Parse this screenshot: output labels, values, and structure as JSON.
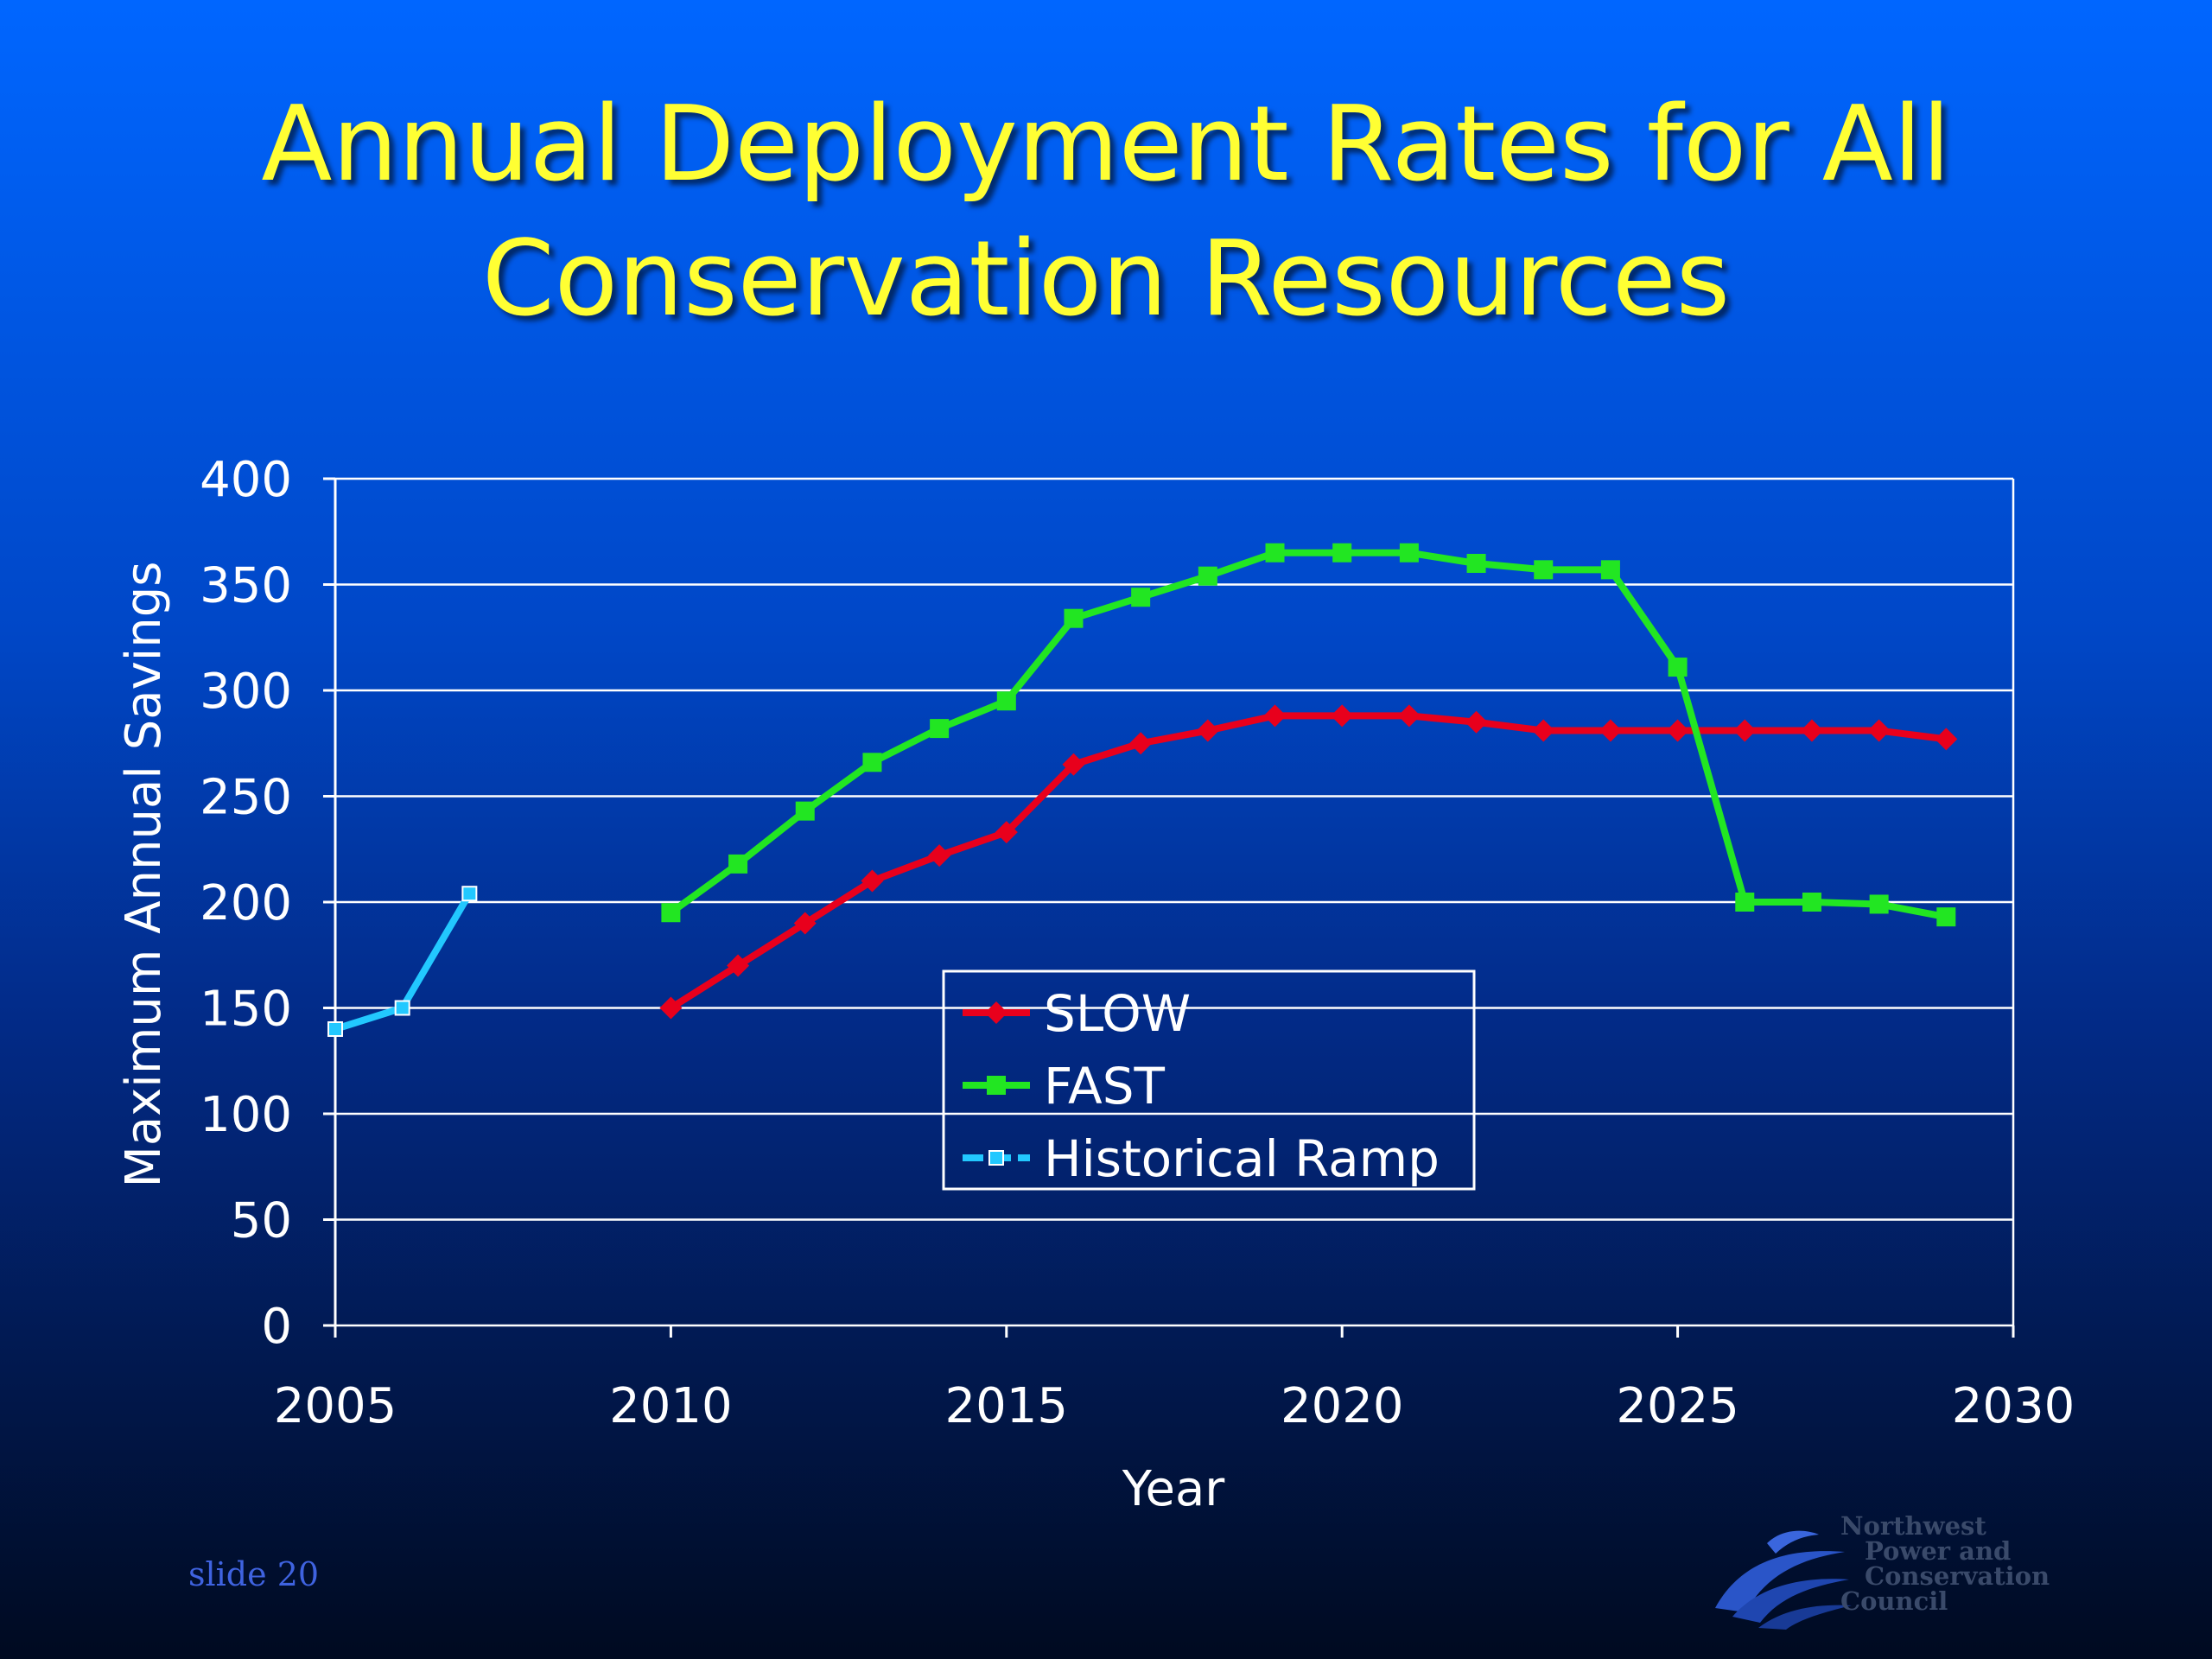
{
  "slide": {
    "title_line1": "Annual Deployment Rates for All",
    "title_line2": "Conservation Resources",
    "slide_number": "slide 20",
    "logo_lines": [
      "Northwest",
      "Power and",
      "Conservation",
      "Council"
    ],
    "logo_icon": "waves-bird-icon"
  },
  "chart_data": {
    "type": "line",
    "title": "",
    "xlabel": "Year",
    "ylabel": "Maximum Annual Savings",
    "xlim": [
      2005,
      2030
    ],
    "ylim": [
      0,
      400
    ],
    "x_ticks": [
      2005,
      2010,
      2015,
      2020,
      2025,
      2030
    ],
    "y_ticks": [
      0,
      50,
      100,
      150,
      200,
      250,
      300,
      350,
      400
    ],
    "grid": "horizontal",
    "legend_placement": "center",
    "series": [
      {
        "name": "SLOW",
        "color": "#e8001c",
        "marker": "diamond",
        "points": [
          [
            2010,
            150
          ],
          [
            2011,
            170
          ],
          [
            2012,
            190
          ],
          [
            2013,
            210
          ],
          [
            2014,
            222
          ],
          [
            2015,
            233
          ],
          [
            2016,
            265
          ],
          [
            2017,
            275
          ],
          [
            2018,
            281
          ],
          [
            2019,
            288
          ],
          [
            2020,
            288
          ],
          [
            2021,
            288
          ],
          [
            2022,
            285
          ],
          [
            2023,
            281
          ],
          [
            2024,
            281
          ],
          [
            2025,
            281
          ],
          [
            2026,
            281
          ],
          [
            2027,
            281
          ],
          [
            2028,
            281
          ],
          [
            2029,
            277
          ]
        ]
      },
      {
        "name": "FAST",
        "color": "#22e622",
        "marker": "square",
        "points": [
          [
            2010,
            195
          ],
          [
            2011,
            218
          ],
          [
            2012,
            243
          ],
          [
            2013,
            266
          ],
          [
            2014,
            282
          ],
          [
            2015,
            295
          ],
          [
            2016,
            334
          ],
          [
            2017,
            344
          ],
          [
            2018,
            354
          ],
          [
            2019,
            365
          ],
          [
            2020,
            365
          ],
          [
            2021,
            365
          ],
          [
            2022,
            360
          ],
          [
            2023,
            357
          ],
          [
            2024,
            357
          ],
          [
            2025,
            311
          ],
          [
            2026,
            200
          ],
          [
            2027,
            200
          ],
          [
            2028,
            199
          ],
          [
            2029,
            193
          ]
        ]
      },
      {
        "name": "Historical Ramp",
        "color": "#22c8ff",
        "marker": "square",
        "points": [
          [
            2005,
            140
          ],
          [
            2006,
            150
          ],
          [
            2007,
            204
          ]
        ]
      }
    ]
  }
}
